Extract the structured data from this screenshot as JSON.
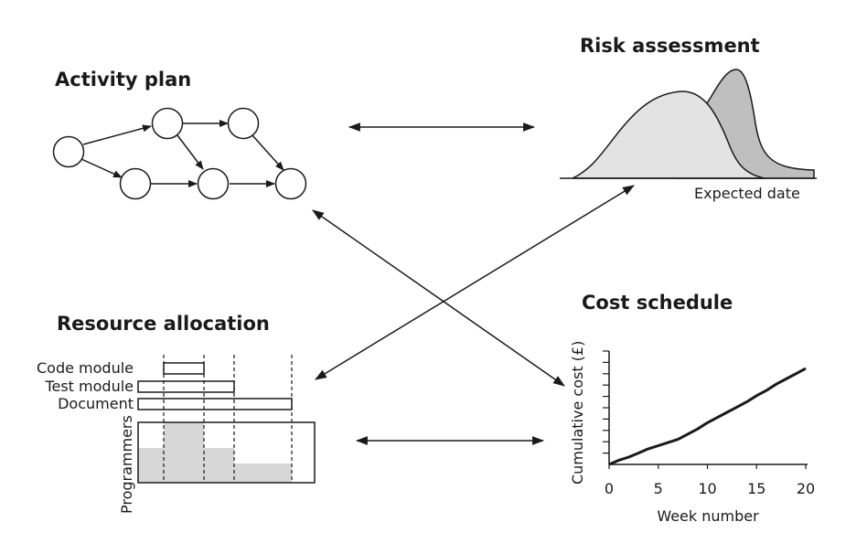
{
  "activity_plan": {
    "title": "Activity plan"
  },
  "risk_assessment": {
    "title": "Risk assessment",
    "axis_label": "Expected date"
  },
  "resource_allocation": {
    "title": "Resource allocation",
    "tasks": [
      "Code module",
      "Test module",
      "Document"
    ],
    "y_label": "Programmers"
  },
  "cost_schedule": {
    "title": "Cost schedule",
    "y_label": "Cumulative cost (£)",
    "x_label": "Week number",
    "x_ticks": [
      "0",
      "5",
      "10",
      "15",
      "20"
    ]
  },
  "chart_data": {
    "type": "line",
    "title": "Cost schedule",
    "xlabel": "Week number",
    "ylabel": "Cumulative cost (£)",
    "xlim": [
      0,
      20
    ],
    "x": [
      0,
      1,
      2,
      3,
      4,
      5,
      6,
      7,
      8,
      9,
      10,
      11,
      12,
      13,
      14,
      15,
      16,
      17,
      18,
      19,
      20
    ],
    "values": [
      0,
      4,
      7,
      11,
      15,
      18,
      21,
      24,
      29,
      34,
      40,
      45,
      50,
      55,
      60,
      66,
      71,
      77,
      82,
      87,
      92
    ]
  }
}
